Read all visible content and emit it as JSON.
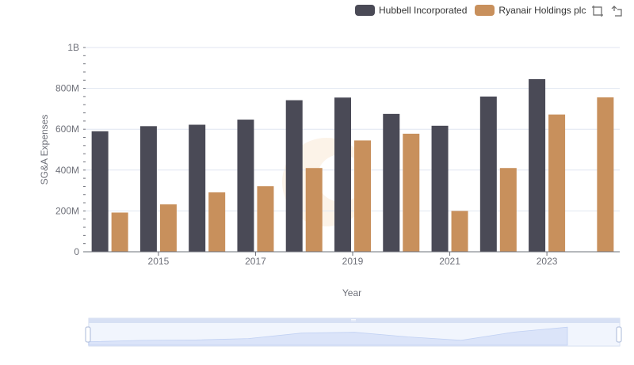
{
  "legend": [
    {
      "name": "Hubbell Incorporated",
      "color": "#4a4a56"
    },
    {
      "name": "Ryanair Holdings plc",
      "color": "#c8905c"
    }
  ],
  "toolbox": {
    "icons": [
      "zoom-icon",
      "restore-icon"
    ]
  },
  "chart_data": {
    "type": "bar",
    "xlabel": "Year",
    "ylabel": "SG&A Expenses",
    "ylim": [
      0,
      1000000000
    ],
    "y_ticks": [
      "0",
      "200M",
      "400M",
      "600M",
      "800M",
      "1B"
    ],
    "x_tick_labels": [
      "2015",
      "2017",
      "2019",
      "2021",
      "2023"
    ],
    "categories": [
      "2014",
      "2015",
      "2016",
      "2017",
      "2018",
      "2019",
      "2020",
      "2021",
      "2022",
      "2023",
      "2024"
    ],
    "series": [
      {
        "name": "Hubbell Incorporated",
        "color": "#4a4a56",
        "values": [
          590000000,
          615000000,
          622000000,
          647000000,
          742000000,
          755000000,
          675000000,
          617000000,
          760000000,
          845000000,
          null
        ]
      },
      {
        "name": "Ryanair Holdings plc",
        "color": "#c8905c",
        "values": [
          192000000,
          232000000,
          291000000,
          321000000,
          410000000,
          545000000,
          578000000,
          200000000,
          410000000,
          672000000,
          756000000
        ]
      }
    ],
    "grid": true,
    "legend_position": "top-right",
    "data_zoom": true
  }
}
